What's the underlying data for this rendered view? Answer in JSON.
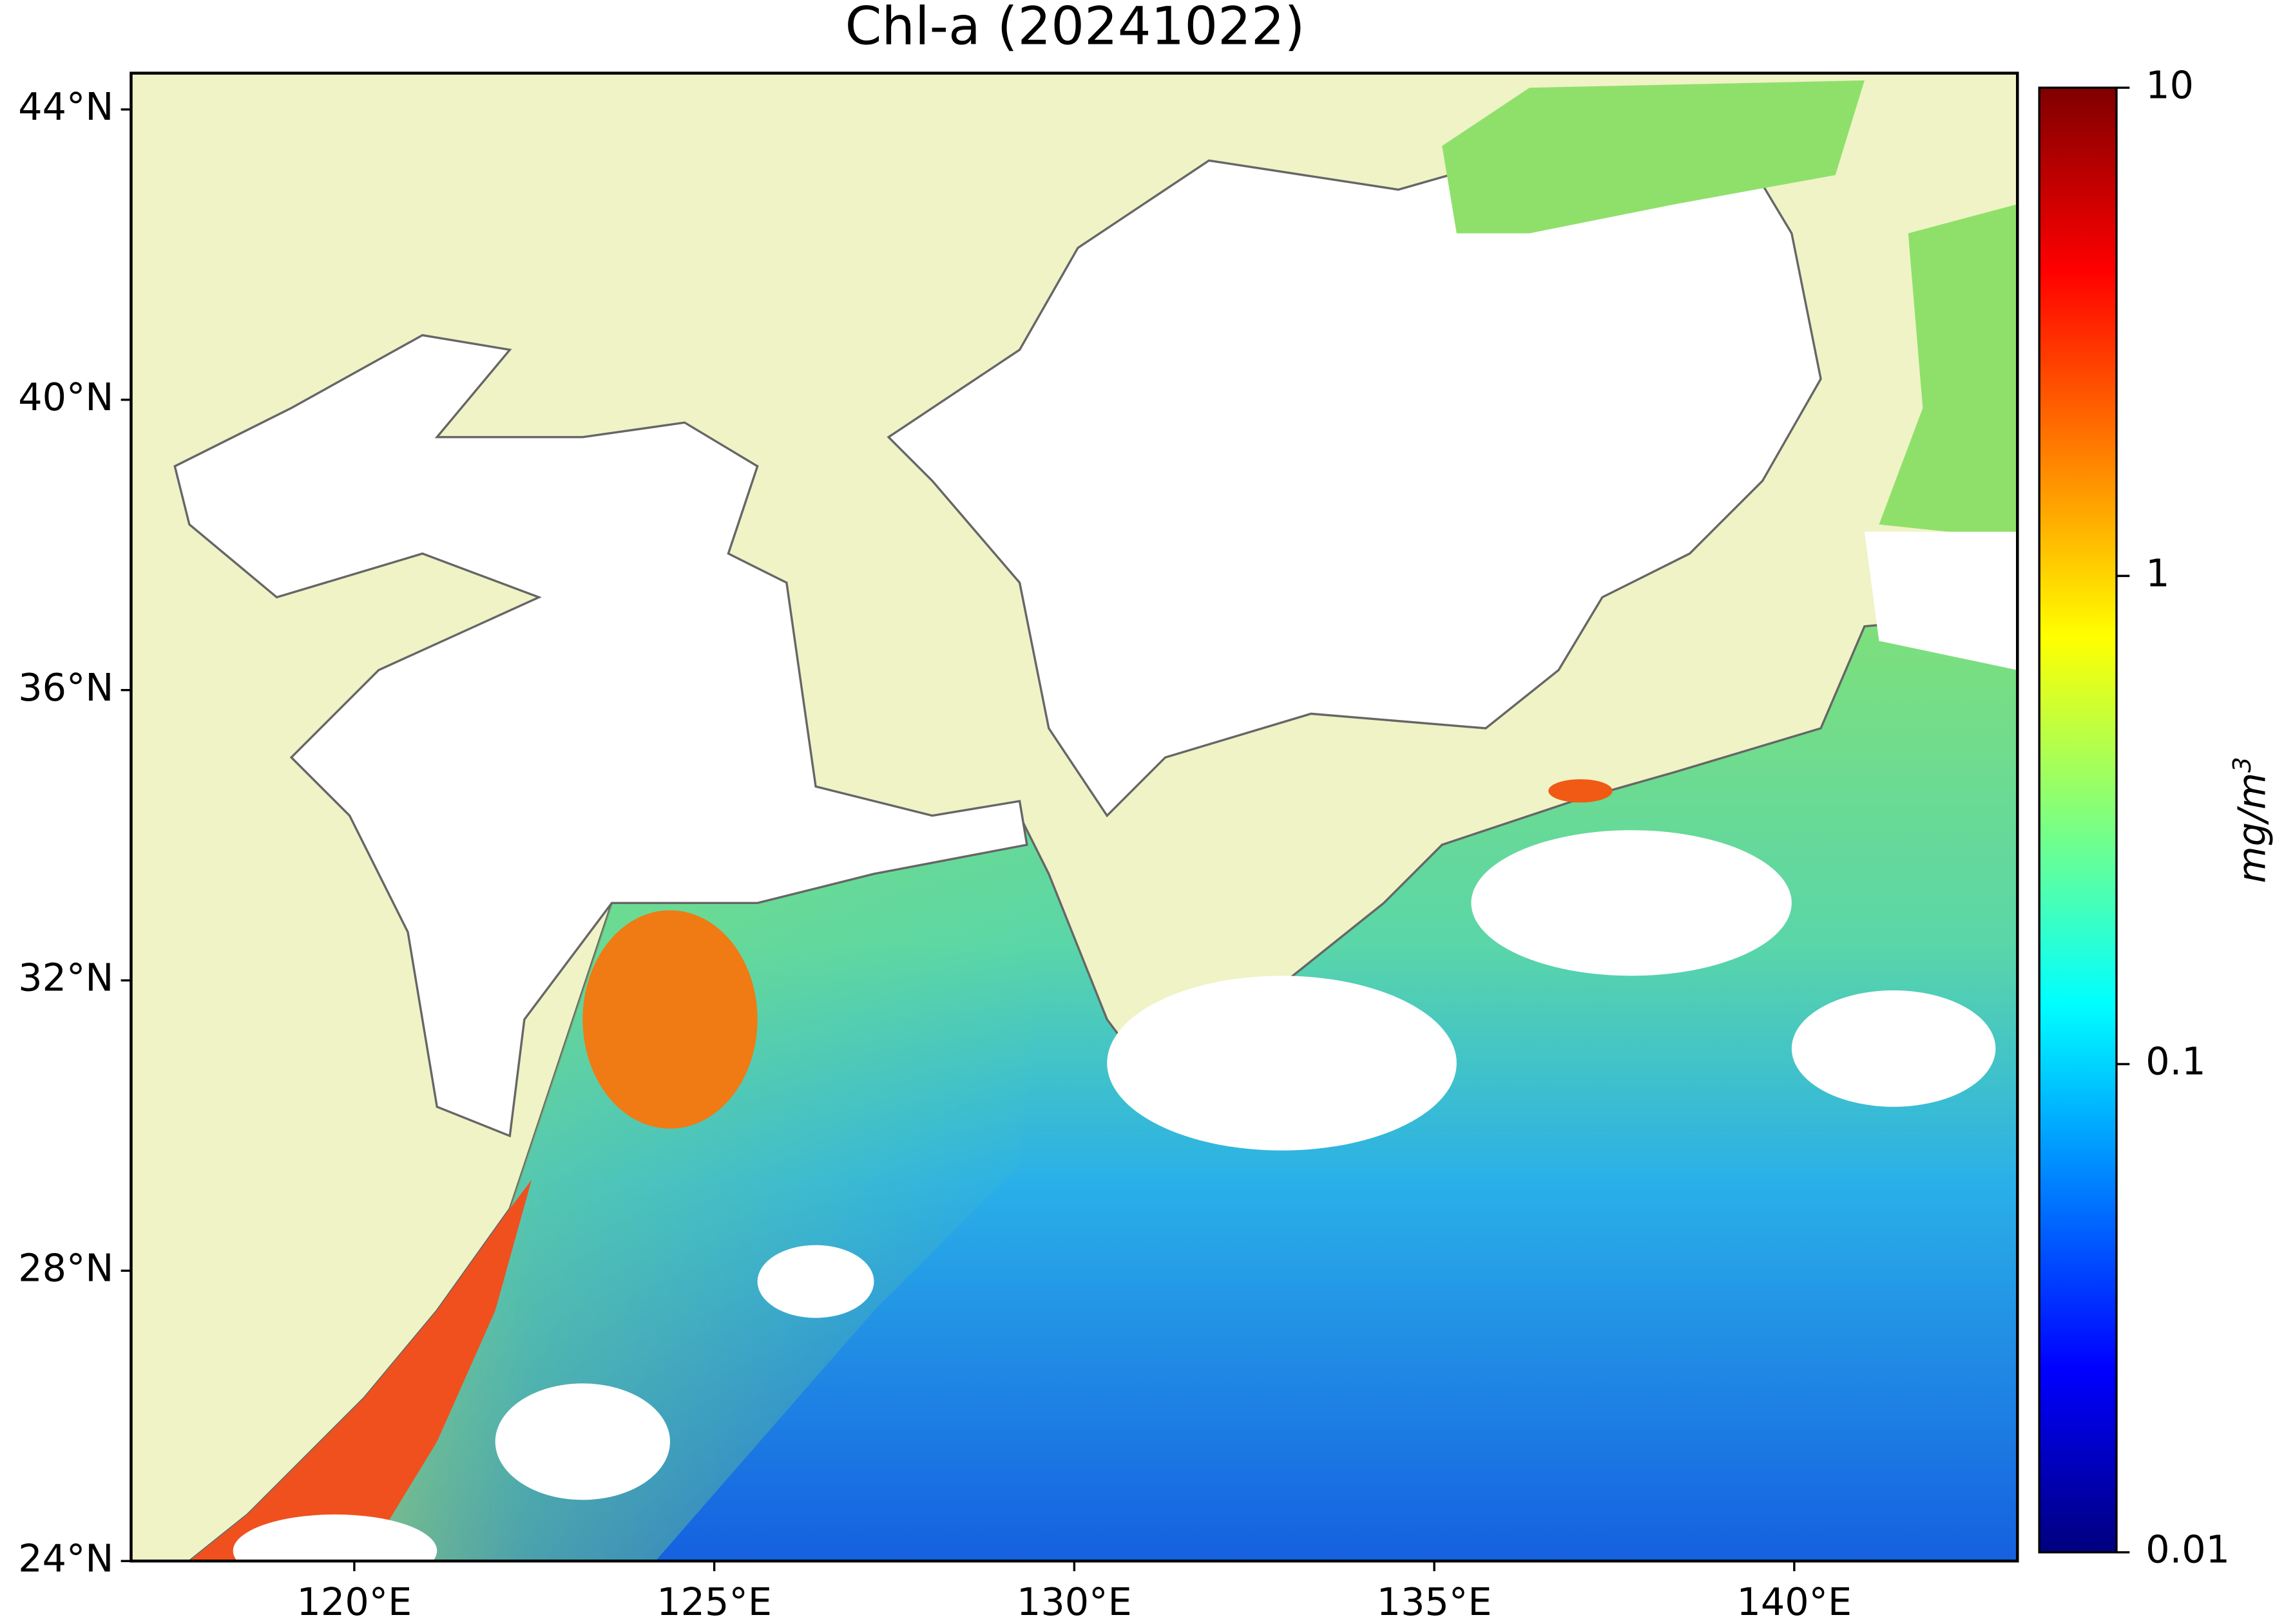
{
  "chart_data": {
    "type": "map",
    "title": "Chl-a (20241022)",
    "xlim": [
      116.9,
      143.1
    ],
    "ylim": [
      24,
      44.5
    ],
    "xticks": [
      {
        "value": 120,
        "label": "120°E"
      },
      {
        "value": 125,
        "label": "125°E"
      },
      {
        "value": 130,
        "label": "130°E"
      },
      {
        "value": 135,
        "label": "135°E"
      },
      {
        "value": 140,
        "label": "140°E"
      }
    ],
    "yticks": [
      {
        "value": 24,
        "label": "24°N"
      },
      {
        "value": 28,
        "label": "28°N"
      },
      {
        "value": 32,
        "label": "32°N"
      },
      {
        "value": 36,
        "label": "36°N"
      },
      {
        "value": 40,
        "label": "40°N"
      },
      {
        "value": 44,
        "label": "44°N"
      }
    ],
    "land_color": "#eff3c6",
    "colorbar": {
      "clim": [
        0.01,
        10
      ],
      "log": true,
      "ticks": [
        0.01,
        0.1,
        1,
        10
      ],
      "colormap": [
        "#00007f",
        "#0000ff",
        "#007fff",
        "#00ffff",
        "#7fff7f",
        "#ffff00",
        "#ff7f00",
        "#ff0000",
        "#7f0000"
      ],
      "label": "mg/m",
      "label_superscript": "3"
    }
  }
}
